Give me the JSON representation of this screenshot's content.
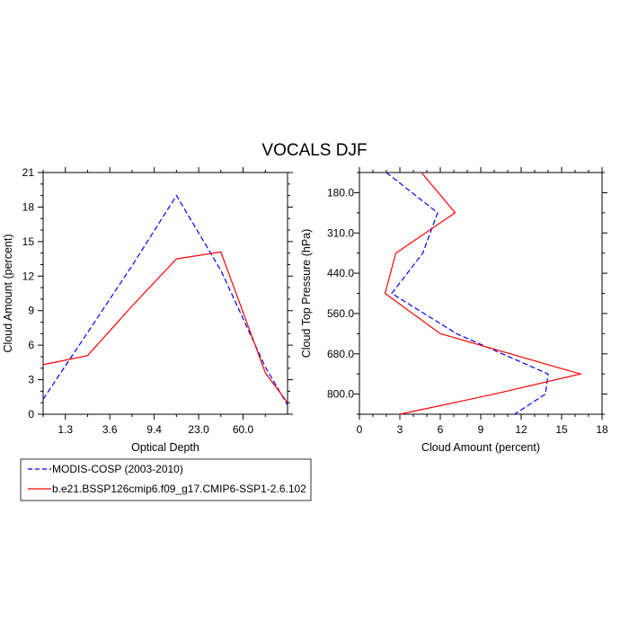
{
  "title": "VOCALS DJF",
  "colors": {
    "modis": "#0000ff",
    "model": "#ff0000"
  },
  "legend": {
    "entries": [
      {
        "label": "MODIS-COSP (2003-2010)",
        "color": "#0000ff",
        "dash": true
      },
      {
        "label": "b.e21.BSSP126cmip6.f09_g17.CMIP6-SSP1-2.6.102",
        "color": "#ff0000",
        "dash": false
      }
    ]
  },
  "chart_data": [
    {
      "type": "line",
      "xlabel": "Optical Depth",
      "ylabel": "Cloud Amount (percent)",
      "x_tick_labels": [
        "1.3",
        "3.6",
        "9.4",
        "23.0",
        "60.0"
      ],
      "x_tick_index": [
        1,
        2,
        3,
        4,
        5
      ],
      "x_range_index": [
        0.5,
        6.0
      ],
      "y_ticks": [
        0,
        3,
        6,
        9,
        12,
        15,
        18,
        21
      ],
      "ylim": [
        0,
        21
      ],
      "x_index": [
        0.5,
        1.5,
        2.5,
        3.5,
        4.5,
        5.5,
        6.0
      ],
      "series": [
        {
          "name": "MODIS-COSP (2003-2010)",
          "color": "#0000ff",
          "dash": true,
          "values": [
            1.3,
            7.1,
            12.9,
            19.0,
            12.5,
            4.1,
            0.8
          ]
        },
        {
          "name": "b.e21.BSSP126cmip6.f09_g17.CMIP6-SSP1-2.6.102",
          "color": "#ff0000",
          "dash": false,
          "values": [
            4.3,
            5.1,
            9.4,
            13.5,
            14.1,
            3.6,
            1.0
          ]
        }
      ]
    },
    {
      "type": "line",
      "xlabel": "Cloud Amount (percent)",
      "ylabel": "Cloud Top Pressure (hPa)",
      "x_ticks": [
        0,
        3,
        6,
        9,
        12,
        15,
        18
      ],
      "xlim": [
        0,
        18
      ],
      "y_tick_labels": [
        "180.0",
        "310.0",
        "440.0",
        "560.0",
        "680.0",
        "800.0"
      ],
      "y_tick_index": [
        1,
        2,
        3,
        4,
        5,
        6
      ],
      "y_range_index": [
        0.5,
        6.5
      ],
      "y_index": [
        0.5,
        1.5,
        2.5,
        3.5,
        4.5,
        5.5,
        6.0,
        6.5
      ],
      "series": [
        {
          "name": "MODIS-COSP (2003-2010)",
          "color": "#0000ff",
          "dash": true,
          "values": [
            2.0,
            5.8,
            4.7,
            2.4,
            7.2,
            14.0,
            13.8,
            11.5
          ]
        },
        {
          "name": "b.e21.BSSP126cmip6.f09_g17.CMIP6-SSP1-2.6.102",
          "color": "#ff0000",
          "dash": false,
          "values": [
            4.6,
            7.1,
            2.7,
            1.9,
            6.0,
            16.4,
            10.0,
            3.0
          ]
        }
      ]
    }
  ]
}
